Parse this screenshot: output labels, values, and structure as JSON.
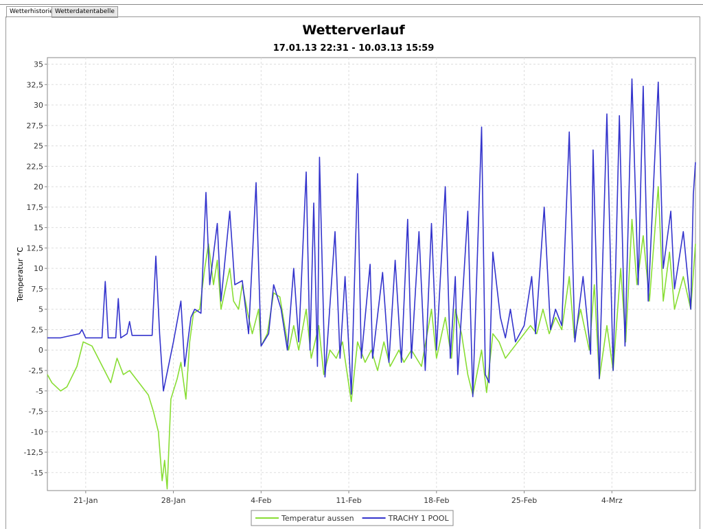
{
  "tabs": [
    "Wetterhistorie",
    "Wetterdatentabelle"
  ],
  "chart_data": {
    "type": "line",
    "title": "Wetterverlauf",
    "subtitle": "17.01.13 22:31 - 10.03.13 15:59",
    "y_label": "Temperatur  °C",
    "xlim": [
      17.94,
      69.67
    ],
    "ylim": [
      -17.2,
      35.8
    ],
    "grid": true,
    "legend": "bottom",
    "xticks": [
      {
        "value": 21,
        "label": "21-Jan"
      },
      {
        "value": 28,
        "label": "28-Jan"
      },
      {
        "value": 35,
        "label": "4-Feb"
      },
      {
        "value": 42,
        "label": "11-Feb"
      },
      {
        "value": 49,
        "label": "18-Feb"
      },
      {
        "value": 56,
        "label": "25-Feb"
      },
      {
        "value": 63,
        "label": "4-Mrz"
      }
    ],
    "yticks": [
      -15,
      {
        "value": -12.5,
        "label": "-12,5"
      },
      -10,
      {
        "value": -7.5,
        "label": "-7,5"
      },
      -5,
      {
        "value": -2.5,
        "label": "-2,5"
      },
      0,
      {
        "value": 2.5,
        "label": "2,5"
      },
      5,
      {
        "value": 7.5,
        "label": "7,5"
      },
      10,
      {
        "value": 12.5,
        "label": "12,5"
      },
      15,
      {
        "value": 17.5,
        "label": "17,5"
      },
      20,
      {
        "value": 22.5,
        "label": "22,5"
      },
      25,
      {
        "value": 27.5,
        "label": "27,5"
      },
      30,
      {
        "value": 32.5,
        "label": "32,5"
      },
      35
    ],
    "series": [
      {
        "name": "Temperatur aussen",
        "color": "#88dd33",
        "x": [
          17.94,
          18.3,
          19,
          19.5,
          20.3,
          20.8,
          21.5,
          22,
          22.5,
          23,
          23.5,
          24,
          24.5,
          25.5,
          26,
          26.4,
          26.8,
          27.1,
          27.3,
          27.5,
          27.8,
          28.3,
          28.6,
          29,
          29.3,
          29.6,
          30.1,
          30.5,
          30.8,
          31.2,
          31.5,
          31.8,
          32.5,
          32.8,
          33.2,
          33.5,
          34,
          34.3,
          34.8,
          35,
          35.5,
          36,
          36.5,
          37.2,
          37.6,
          38,
          38.6,
          39,
          39.6,
          40,
          40.5,
          41,
          41.5,
          42.2,
          42.7,
          43.3,
          43.8,
          44.3,
          44.8,
          45.3,
          46,
          46.4,
          47,
          47.8,
          48.6,
          49,
          49.7,
          50.2,
          50.5,
          51,
          51.5,
          51.9,
          52.6,
          53,
          53.5,
          54,
          54.5,
          55,
          55.5,
          56,
          56.5,
          57,
          57.5,
          58,
          58.5,
          59,
          59.6,
          60,
          60.5,
          61.2,
          61.6,
          62,
          62.6,
          63.1,
          63.7,
          64.1,
          64.6,
          65,
          65.5,
          66,
          66.7,
          67.1,
          67.6,
          68,
          68.7,
          69.3,
          69.67
        ],
        "values": [
          -3,
          -4,
          -5,
          -4.5,
          -2,
          1,
          0.5,
          -1,
          -2.5,
          -4,
          -1,
          -3,
          -2.5,
          -4.5,
          -5.5,
          -7.5,
          -10,
          -16,
          -13.5,
          -17,
          -6,
          -3.5,
          -1.5,
          -6,
          1,
          4.5,
          5,
          10,
          13,
          8,
          11,
          5,
          10,
          6,
          5,
          8,
          4,
          2,
          5,
          0.5,
          2,
          7,
          6.5,
          0,
          3,
          0,
          5,
          -1,
          3,
          -3,
          0,
          -1,
          1,
          -6.3,
          1,
          -1.5,
          0,
          -2.5,
          1,
          -2,
          0,
          -1.5,
          0,
          -2,
          5,
          -1,
          4,
          -1,
          5,
          2,
          -3,
          -5.5,
          0,
          -5.2,
          2,
          1,
          -1,
          0,
          1,
          2,
          3,
          2,
          5,
          2,
          4,
          2.5,
          9,
          1.5,
          5,
          0,
          8,
          -3.5,
          3,
          -2.5,
          10,
          1,
          16,
          8,
          14,
          6,
          20,
          6,
          12,
          5,
          9,
          5,
          13
        ]
      },
      {
        "name": "TRACHY 1 POOL",
        "color": "#3333cc",
        "x": [
          17.94,
          19,
          20.5,
          20.7,
          21,
          22.3,
          22.56,
          22.8,
          23.4,
          23.6,
          23.8,
          24.3,
          24.5,
          24.7,
          26.3,
          26.6,
          26.9,
          27.2,
          28,
          28.6,
          28.9,
          29.4,
          29.7,
          30.2,
          30.6,
          30.9,
          31.5,
          31.8,
          32.5,
          32.9,
          33.5,
          34,
          34.6,
          35,
          35.6,
          36,
          36.6,
          37.1,
          37.6,
          38,
          38.6,
          38.9,
          39.2,
          39.5,
          39.66,
          40.1,
          40.9,
          41.3,
          41.7,
          42.2,
          42.7,
          43,
          43.7,
          43.9,
          44.7,
          45.2,
          45.7,
          46.2,
          46.7,
          47,
          47.6,
          48.1,
          48.6,
          49,
          49.7,
          50.1,
          50.5,
          50.7,
          51.5,
          51.9,
          52.6,
          52.9,
          53.2,
          53.5,
          54.1,
          54.5,
          54.9,
          55.3,
          56,
          56.6,
          56.9,
          57.6,
          58.1,
          58.5,
          59,
          59.6,
          60.05,
          60.7,
          61.3,
          61.5,
          62,
          62.6,
          63.1,
          63.6,
          64.05,
          64.6,
          65.1,
          65.5,
          65.9,
          66.7,
          67.1,
          67.7,
          68,
          68.7,
          69.3,
          69.5,
          69.67
        ],
        "values": [
          1.5,
          1.5,
          2,
          2.5,
          1.5,
          1.5,
          8.4,
          1.5,
          1.5,
          6.3,
          1.5,
          2,
          3.5,
          1.8,
          1.8,
          11.5,
          2,
          -5,
          1,
          6,
          -2,
          4,
          5,
          4.5,
          19.3,
          8,
          15.5,
          6,
          17,
          8,
          8.5,
          2,
          20.5,
          0.5,
          2,
          8,
          5,
          0,
          10,
          1,
          21.8,
          0,
          18,
          -2,
          23.6,
          -3.3,
          14.5,
          -1,
          9,
          -5.4,
          21.6,
          -1,
          10.5,
          -1,
          9.5,
          -1.5,
          11,
          -1.5,
          16,
          -1,
          14.5,
          -2.5,
          15.5,
          0,
          20,
          -1,
          9,
          -3,
          17,
          -5.7,
          27.3,
          -3,
          -4,
          12,
          4,
          1.5,
          5,
          1,
          3,
          9,
          2,
          17.5,
          2.5,
          5,
          3,
          26.7,
          1,
          9,
          -0.5,
          24.5,
          -3.5,
          28.9,
          -2.5,
          28.7,
          0.5,
          33.2,
          8,
          32.3,
          6,
          32.8,
          10,
          17,
          7.5,
          14.5,
          5,
          19,
          23
        ]
      }
    ]
  }
}
